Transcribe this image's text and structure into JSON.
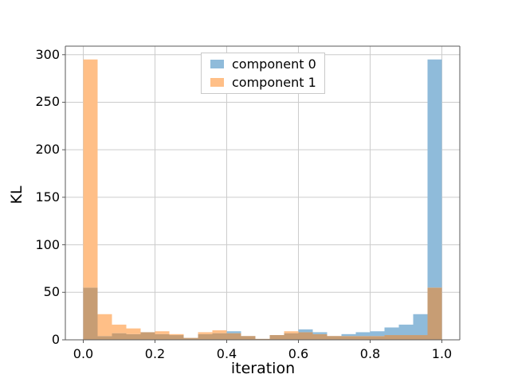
{
  "chart_data": {
    "type": "bar",
    "subtype": "overlapping-histogram",
    "title": "",
    "xlabel": "iteration",
    "ylabel": "KL",
    "bin_start": 0.0,
    "bin_width": 0.04,
    "n_bins": 25,
    "series": [
      {
        "name": "component 0",
        "base_color": "#1f77b4",
        "fill": "#8fbbda",
        "values": [
          55,
          4,
          7,
          6,
          8,
          6,
          5,
          2,
          6,
          7,
          9,
          4,
          1,
          5,
          7,
          11,
          8,
          4,
          6,
          8,
          9,
          13,
          16,
          27,
          295
        ]
      },
      {
        "name": "component 1",
        "base_color": "#ff7f0e",
        "fill": "#ffbf87",
        "values": [
          295,
          27,
          16,
          12,
          8,
          9,
          6,
          2,
          8,
          10,
          7,
          4,
          1,
          5,
          9,
          8,
          6,
          4,
          4,
          4,
          4,
          5,
          5,
          5,
          55
        ]
      }
    ],
    "overlap_color": "#c79d74",
    "xlim": [
      -0.05,
      1.05
    ],
    "ylim": [
      0,
      309
    ],
    "xticks": [
      0.0,
      0.2,
      0.4,
      0.6,
      0.8,
      1.0
    ],
    "xtick_labels": [
      "0.0",
      "0.2",
      "0.4",
      "0.6",
      "0.8",
      "1.0"
    ],
    "yticks": [
      0,
      50,
      100,
      150,
      200,
      250,
      300
    ],
    "ytick_labels": [
      "0",
      "50",
      "100",
      "150",
      "200",
      "250",
      "300"
    ],
    "grid": true,
    "legend_position": "upper center"
  },
  "colors": {
    "background": "#ffffff",
    "grid": "#cccccc",
    "spine": "#5a5a5a",
    "tick": "#5a5a5a",
    "text": "#000000",
    "legend_border": "#c9c9c9"
  }
}
